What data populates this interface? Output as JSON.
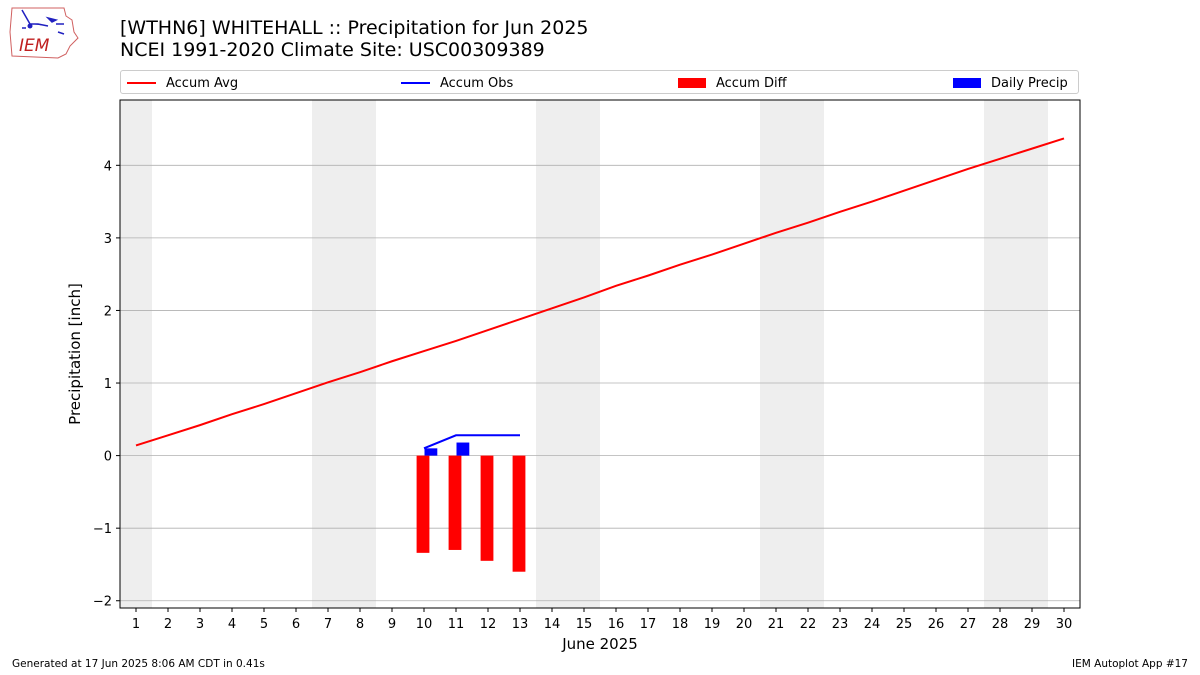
{
  "titles": {
    "line1": "[WTHN6] WHITEHALL :: Precipitation for Jun 2025",
    "line2": "NCEI 1991-2020 Climate Site: USC00309389"
  },
  "logo": {
    "text": "IEM"
  },
  "footer": {
    "left": "Generated at 17 Jun 2025 8:06 AM CDT in 0.41s",
    "right": "IEM Autoplot App #17"
  },
  "legend": {
    "accum_avg": "Accum Avg",
    "accum_obs": "Accum Obs",
    "accum_diff": "Accum Diff",
    "daily_precip": "Daily Precip"
  },
  "colors": {
    "avg": "#ff0000",
    "obs": "#0000ff",
    "diff": "#ff0000",
    "daily": "#0000ff",
    "weekend": "#eeeeee",
    "grid": "#b0b0b0"
  },
  "chart_data": {
    "type": "line",
    "xlabel": "June 2025",
    "ylabel": "Precipitation [inch]",
    "xlim": [
      0.5,
      30.5
    ],
    "ylim": [
      -2.1,
      4.9
    ],
    "x_ticks": [
      1,
      2,
      3,
      4,
      5,
      6,
      7,
      8,
      9,
      10,
      11,
      12,
      13,
      14,
      15,
      16,
      17,
      18,
      19,
      20,
      21,
      22,
      23,
      24,
      25,
      26,
      27,
      28,
      29,
      30
    ],
    "y_ticks": [
      -2,
      -1,
      0,
      1,
      2,
      3,
      4
    ],
    "y_tick_labels": [
      "−2",
      "−1",
      "0",
      "1",
      "2",
      "3",
      "4"
    ],
    "grid": "horizontal",
    "legend_position": "top",
    "weekend_days": [
      [
        1,
        1
      ],
      [
        7,
        8
      ],
      [
        14,
        15
      ],
      [
        21,
        22
      ],
      [
        28,
        29
      ]
    ],
    "series": [
      {
        "name": "Accum Avg",
        "type": "line",
        "x": [
          1,
          2,
          3,
          4,
          5,
          6,
          7,
          8,
          9,
          10,
          11,
          12,
          13,
          14,
          15,
          16,
          17,
          18,
          19,
          20,
          21,
          22,
          23,
          24,
          25,
          26,
          27,
          28,
          29,
          30
        ],
        "values": [
          0.14,
          0.28,
          0.42,
          0.57,
          0.71,
          0.86,
          1.01,
          1.15,
          1.3,
          1.44,
          1.58,
          1.73,
          1.88,
          2.03,
          2.18,
          2.34,
          2.48,
          2.63,
          2.77,
          2.92,
          3.07,
          3.21,
          3.36,
          3.5,
          3.65,
          3.8,
          3.95,
          4.09,
          4.23,
          4.37
        ]
      },
      {
        "name": "Accum Obs",
        "type": "line",
        "x": [
          10,
          11,
          12,
          13
        ],
        "values": [
          0.1,
          0.28,
          0.28,
          0.28
        ]
      },
      {
        "name": "Accum Diff",
        "type": "bar",
        "x": [
          10,
          11,
          12,
          13
        ],
        "values": [
          -1.34,
          -1.3,
          -1.45,
          -1.6
        ]
      },
      {
        "name": "Daily Precip",
        "type": "bar",
        "x": [
          10,
          11
        ],
        "values": [
          0.1,
          0.18
        ]
      }
    ]
  }
}
